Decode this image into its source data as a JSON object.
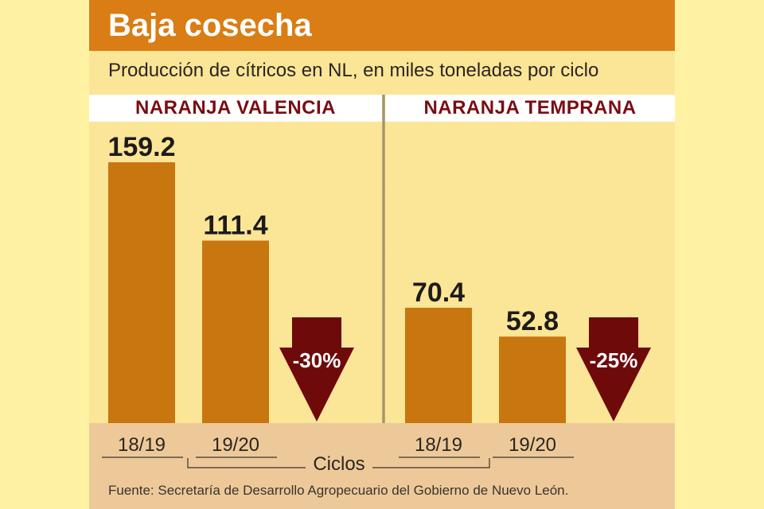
{
  "title": "Baja cosecha",
  "subtitle": "Producción de cítricos en NL, en miles toneladas por ciclo",
  "source": "Fuente: Secretaría de Desarrollo Agropecuario del Gobierno de Nuevo León.",
  "colors": {
    "title_bar": "#d97d14",
    "bar": "#c8760f",
    "arrow": "#6e0a0a",
    "panel_title": "#7a0c12",
    "background": "#fbe597",
    "axis_band": "#edc99a"
  },
  "chart_data": {
    "type": "bar",
    "xlabel": "Ciclos",
    "categories": [
      "18/19",
      "19/20"
    ],
    "panels": [
      {
        "title": "NARANJA VALENCIA",
        "values": [
          159.2,
          111.4
        ],
        "value_labels": [
          "159.2",
          "111.4"
        ],
        "change_label": "-30%"
      },
      {
        "title": "NARANJA TEMPRANA",
        "values": [
          70.4,
          52.8
        ],
        "value_labels": [
          "70.4",
          "52.8"
        ],
        "change_label": "-25%"
      }
    ]
  }
}
